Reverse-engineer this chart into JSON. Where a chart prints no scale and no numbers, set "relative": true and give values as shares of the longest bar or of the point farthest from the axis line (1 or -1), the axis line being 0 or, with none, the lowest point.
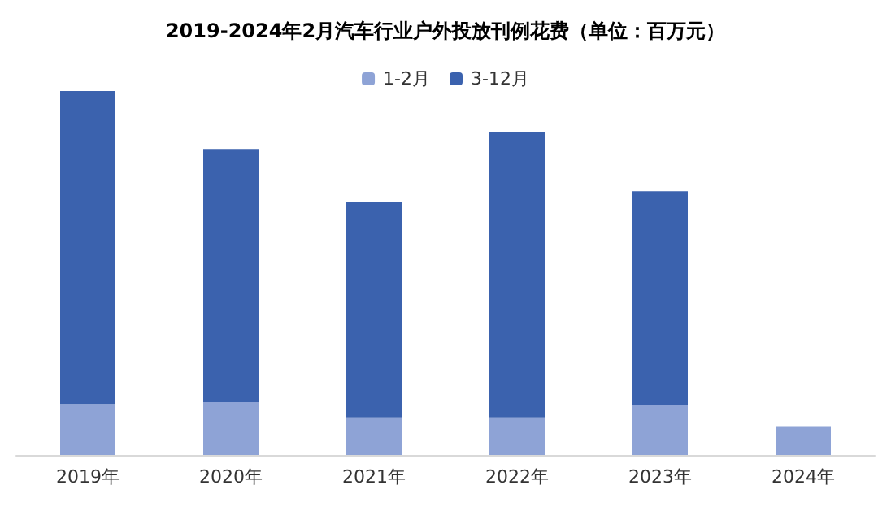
{
  "chart_data": {
    "type": "bar",
    "title": "2019-2024年2月汽车行业户外投放刊例花费（单位：百万元）",
    "categories": [
      "2019年",
      "2020年",
      "2021年",
      "2022年",
      "2023年",
      "2024年"
    ],
    "series": [
      {
        "name": "1-2月",
        "color": "#8ea3d6",
        "values": [
          0.14,
          0.145,
          0.103,
          0.103,
          0.136,
          0.079
        ]
      },
      {
        "name": "3-12月",
        "color": "#3b62ae",
        "values": [
          0.86,
          0.696,
          0.593,
          0.785,
          0.589,
          null
        ]
      }
    ],
    "stacked": true,
    "relative": true,
    "legend": "top"
  }
}
